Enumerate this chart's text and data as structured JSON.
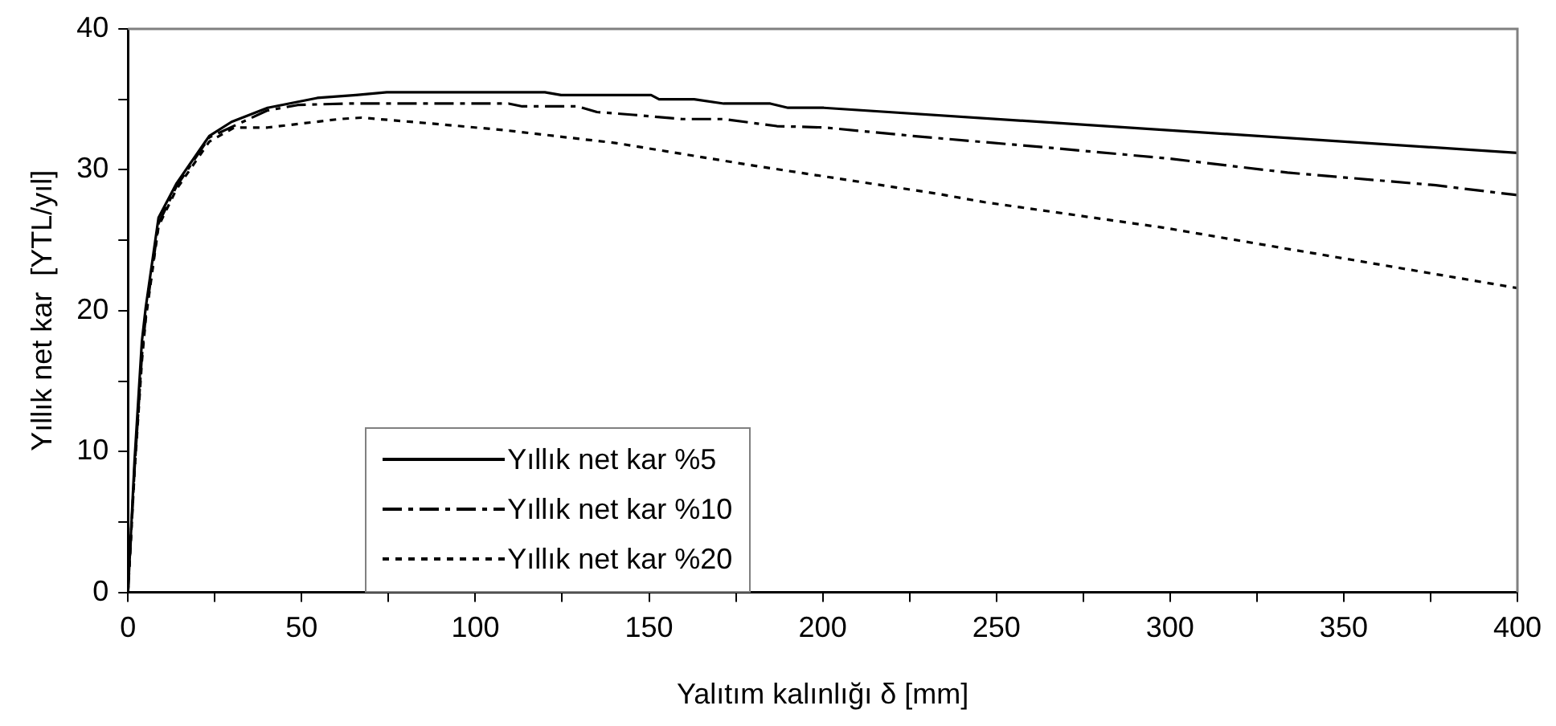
{
  "chart_data": {
    "type": "line",
    "xlabel": "Yalıtım kalınlığı δ [mm]",
    "ylabel": "Yıllık net kar  [YTL/yıl]",
    "xlim": [
      0,
      400
    ],
    "ylim": [
      0,
      40
    ],
    "xticks": [
      0,
      {
        "value": 25,
        "label": null
      },
      50,
      {
        "value": 75,
        "label": null
      },
      100,
      {
        "value": 125,
        "label": null
      },
      150,
      {
        "value": 175,
        "label": null
      },
      200,
      {
        "value": 225,
        "label": null
      },
      250,
      {
        "value": 275,
        "label": null
      },
      300,
      {
        "value": 325,
        "label": null
      },
      350,
      {
        "value": 375,
        "label": null
      },
      400
    ],
    "yticks": [
      0,
      {
        "value": 5,
        "label": null
      },
      10,
      {
        "value": 15,
        "label": null
      },
      20,
      {
        "value": 25,
        "label": null
      },
      30,
      {
        "value": 35,
        "label": null
      },
      40
    ],
    "grid": false,
    "legend": "bottom left",
    "marker": "none",
    "series": [
      {
        "name": "Yıllık net kar %5",
        "color": "#000000",
        "line_style": "solid",
        "x": [
          0,
          1.9,
          4,
          5.1,
          8.8,
          13.9,
          23.4,
          29.8,
          40.2,
          54.5,
          65.6,
          74.5,
          120,
          124.7,
          140.4,
          150.6,
          152.9,
          163,
          171.5,
          184.9,
          190,
          200.3,
          400
        ],
        "values": [
          0,
          9.4,
          17.8,
          20.2,
          26.6,
          29,
          32.4,
          33.4,
          34.4,
          35.1,
          35.3,
          35.5,
          35.5,
          35.3,
          35.3,
          35.3,
          35,
          35,
          34.7,
          34.7,
          34.4,
          34.4,
          31.2
        ]
      },
      {
        "name": "Yıllık net kar %10",
        "color": "#000000",
        "line_style": "dashed",
        "x": [
          0,
          1.9,
          4,
          5.1,
          8.8,
          13.9,
          23.4,
          40,
          48.9,
          62.5,
          109.6,
          113.5,
          129.5,
          135,
          145.5,
          159.5,
          171.4,
          186.8,
          200.5,
          226,
          263.6,
          299.5,
          333.8,
          376.5,
          400
        ],
        "values": [
          0,
          8.8,
          16.8,
          19.6,
          26.2,
          28.8,
          32.3,
          34.2,
          34.6,
          34.7,
          34.7,
          34.5,
          34.5,
          34.1,
          33.9,
          33.6,
          33.6,
          33.1,
          33,
          32.4,
          31.6,
          30.8,
          29.8,
          28.9,
          28.2
        ]
      },
      {
        "name": "Yıllık net kar %20",
        "color": "#000000",
        "line_style": "dotted",
        "x": [
          0,
          1.9,
          4,
          5.1,
          8.8,
          13.9,
          23.4,
          30.6,
          40.2,
          60.9,
          67.3,
          91.2,
          108.8,
          126.3,
          140.4,
          180,
          233,
          246.6,
          289.3,
          297.9,
          400
        ],
        "values": [
          0,
          8.6,
          16.4,
          19.4,
          26,
          28.6,
          32,
          33,
          33,
          33.6,
          33.7,
          33.2,
          32.8,
          32.3,
          31.9,
          30.3,
          28.3,
          27.7,
          26.2,
          25.9,
          21.6
        ]
      }
    ]
  }
}
